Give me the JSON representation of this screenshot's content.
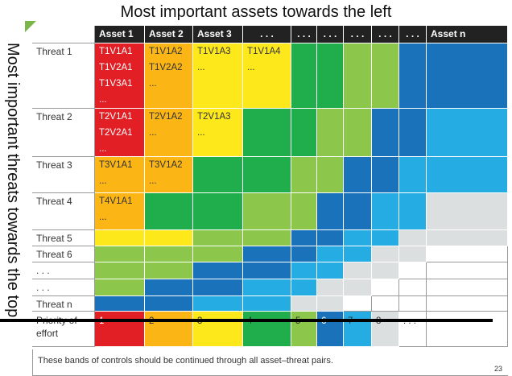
{
  "title": "Most important assets towards the left",
  "side_label": "Most important threats towards the top",
  "headers": [
    "Asset 1",
    "Asset 2",
    "Asset 3",
    ". . .",
    ". . .",
    ". . .",
    ". . .",
    ". . .",
    ". . .",
    "Asset n"
  ],
  "threats": [
    "Threat 1",
    "Threat 2",
    "Threat 3",
    "Threat 4",
    "Threat 5",
    "Threat 6",
    ". . .",
    ". . .",
    "Threat n"
  ],
  "cells": [
    [
      [
        "T1V1A1",
        "T1V2A1",
        "T1V3A1",
        "..."
      ],
      [
        "T1V1A2",
        "T1V2A2",
        "..."
      ],
      [
        "T1V1A3",
        "..."
      ],
      [
        "T1V1A4",
        "..."
      ],
      [],
      [],
      [],
      [],
      [],
      []
    ],
    [
      [
        "T2V1A1",
        "T2V2A1",
        "..."
      ],
      [
        "T2V1A2",
        "..."
      ],
      [
        "T2V1A3",
        "..."
      ],
      [],
      [],
      [],
      [],
      [],
      [],
      []
    ],
    [
      [
        "T3V1A1",
        "..."
      ],
      [
        "T3V1A2",
        "..."
      ],
      [],
      [],
      [],
      [],
      [],
      [],
      [],
      []
    ],
    [
      [
        "T4V1A1",
        "..."
      ],
      [],
      [],
      [],
      [],
      [],
      [],
      [],
      [],
      []
    ],
    [
      [],
      [],
      [],
      [],
      [],
      [],
      [],
      [],
      [],
      []
    ],
    [
      [],
      [],
      [],
      [],
      [],
      [],
      [],
      [],
      [],
      []
    ],
    [
      [],
      [],
      [],
      [],
      [],
      [],
      [],
      [],
      [],
      []
    ],
    [
      [],
      [],
      [],
      [],
      [],
      [],
      [],
      [],
      [],
      []
    ],
    [
      [],
      [],
      [],
      [],
      [],
      [],
      [],
      [],
      [],
      []
    ]
  ],
  "levels": [
    [
      1,
      2,
      3,
      3,
      4,
      4,
      5,
      5,
      6,
      6
    ],
    [
      1,
      2,
      3,
      4,
      4,
      5,
      5,
      6,
      6,
      7
    ],
    [
      2,
      2,
      4,
      4,
      5,
      5,
      6,
      6,
      7,
      7
    ],
    [
      2,
      4,
      4,
      5,
      5,
      6,
      6,
      7,
      7,
      8
    ],
    [
      3,
      3,
      5,
      5,
      6,
      6,
      7,
      7,
      8,
      8
    ],
    [
      5,
      5,
      5,
      6,
      6,
      7,
      7,
      8,
      8,
      9
    ],
    [
      5,
      5,
      6,
      6,
      7,
      7,
      8,
      8,
      9,
      10
    ],
    [
      5,
      6,
      6,
      7,
      7,
      8,
      8,
      9,
      10,
      10
    ],
    [
      6,
      6,
      7,
      7,
      8,
      8,
      9,
      10,
      10,
      10
    ]
  ],
  "colors": {
    "1": "#e31f26",
    "2": "#fbb515",
    "3": "#fce81b",
    "4": "#1fae4b",
    "5": "#8cc64a",
    "6": "#1a72bb",
    "7": "#25ace2",
    "8": "#dcdfe0",
    "9": "#ffffff",
    "10": "#ffffff"
  },
  "priority": {
    "label": "Priority of effort",
    "values": [
      "1",
      "2",
      "3",
      "4",
      "5",
      "6",
      "7",
      "8",
      ". . ."
    ]
  },
  "note": "These bands of controls should be continued through all asset–threat pairs.",
  "page_number": "23"
}
